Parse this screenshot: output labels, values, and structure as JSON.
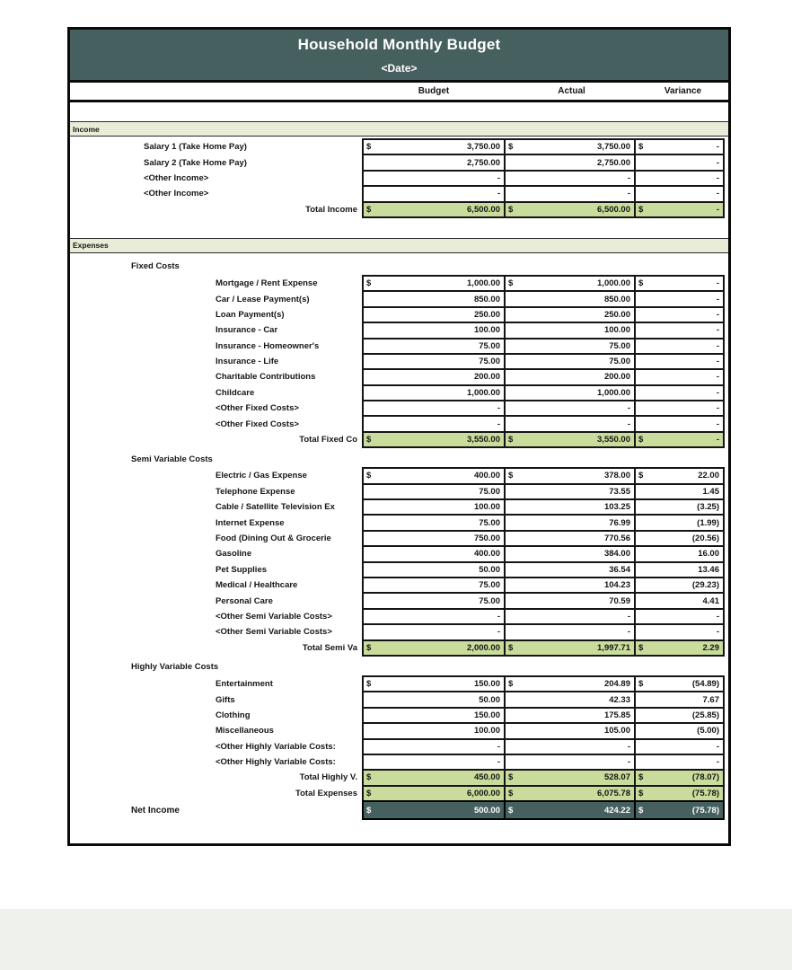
{
  "page": {
    "title": "Household Monthly Budget",
    "date_placeholder": "<Date>",
    "columns": [
      "Budget",
      "Actual",
      "Variance"
    ],
    "colors": {
      "header_teal": "#45605e",
      "section_band": "#e9edd8",
      "total_green": "#c9dc9b",
      "net_row": "#45605e"
    }
  },
  "rows": [
    {
      "t": "band",
      "label": "Income"
    },
    {
      "t": "gap",
      "h": 2
    },
    {
      "t": "item",
      "ind": "income",
      "label": "Salary 1 (Take Home Pay)",
      "d": true,
      "b": "3,750.00",
      "a": "3,750.00",
      "v": "-"
    },
    {
      "t": "item",
      "ind": "income",
      "label": "Salary 2 (Take Home Pay)",
      "b": "2,750.00",
      "a": "2,750.00",
      "v": "-"
    },
    {
      "t": "item",
      "ind": "income",
      "label": "<Other Income>",
      "b": "-",
      "a": "-",
      "v": "-"
    },
    {
      "t": "item",
      "ind": "income",
      "label": "<Other Income>",
      "b": "-",
      "a": "-",
      "v": "-"
    },
    {
      "t": "total",
      "label": "Total Income",
      "d": true,
      "b": "6,500.00",
      "a": "6,500.00",
      "v": "-"
    },
    {
      "t": "gap",
      "h": 22
    },
    {
      "t": "band",
      "label": "Expenses"
    },
    {
      "t": "gap",
      "h": 3
    },
    {
      "t": "group",
      "label": "Fixed Costs"
    },
    {
      "t": "item",
      "ind": "exp",
      "label": "Mortgage / Rent Expense",
      "d": true,
      "b": "1,000.00",
      "a": "1,000.00",
      "v": "-"
    },
    {
      "t": "item",
      "ind": "exp",
      "label": "Car / Lease Payment(s)",
      "b": "850.00",
      "a": "850.00",
      "v": "-"
    },
    {
      "t": "item",
      "ind": "exp",
      "label": "Loan Payment(s)",
      "b": "250.00",
      "a": "250.00",
      "v": "-"
    },
    {
      "t": "item",
      "ind": "exp",
      "label": "Insurance - Car",
      "b": "100.00",
      "a": "100.00",
      "v": "-"
    },
    {
      "t": "item",
      "ind": "exp",
      "label": "Insurance - Homeowner's",
      "b": "75.00",
      "a": "75.00",
      "v": "-"
    },
    {
      "t": "item",
      "ind": "exp",
      "label": "Insurance - Life",
      "b": "75.00",
      "a": "75.00",
      "v": "-"
    },
    {
      "t": "item",
      "ind": "exp",
      "label": "Charitable Contributions",
      "b": "200.00",
      "a": "200.00",
      "v": "-"
    },
    {
      "t": "item",
      "ind": "exp",
      "label": "Childcare",
      "b": "1,000.00",
      "a": "1,000.00",
      "v": "-"
    },
    {
      "t": "item",
      "ind": "exp",
      "label": "<Other Fixed Costs>",
      "b": "-",
      "a": "-",
      "v": "-"
    },
    {
      "t": "item",
      "ind": "exp",
      "label": "<Other Fixed Costs>",
      "b": "-",
      "a": "-",
      "v": "-"
    },
    {
      "t": "total",
      "label": "Total Fixed Co",
      "d": true,
      "b": "3,550.00",
      "a": "3,550.00",
      "v": "-"
    },
    {
      "t": "group",
      "label": "Semi Variable Costs"
    },
    {
      "t": "item",
      "ind": "exp",
      "label": "Electric / Gas Expense",
      "d": true,
      "b": "400.00",
      "a": "378.00",
      "v": "22.00"
    },
    {
      "t": "item",
      "ind": "exp",
      "label": "Telephone Expense",
      "b": "75.00",
      "a": "73.55",
      "v": "1.45"
    },
    {
      "t": "item",
      "ind": "exp",
      "label": "Cable / Satellite Television Ex",
      "b": "100.00",
      "a": "103.25",
      "v": "(3.25)"
    },
    {
      "t": "item",
      "ind": "exp",
      "label": "Internet Expense",
      "b": "75.00",
      "a": "76.99",
      "v": "(1.99)"
    },
    {
      "t": "item",
      "ind": "exp",
      "label": "Food (Dining Out & Grocerie",
      "b": "750.00",
      "a": "770.56",
      "v": "(20.56)"
    },
    {
      "t": "item",
      "ind": "exp",
      "label": "Gasoline",
      "b": "400.00",
      "a": "384.00",
      "v": "16.00"
    },
    {
      "t": "item",
      "ind": "exp",
      "label": "Pet Supplies",
      "b": "50.00",
      "a": "36.54",
      "v": "13.46"
    },
    {
      "t": "item",
      "ind": "exp",
      "label": "Medical / Healthcare",
      "b": "75.00",
      "a": "104.23",
      "v": "(29.23)"
    },
    {
      "t": "item",
      "ind": "exp",
      "label": "Personal Care",
      "b": "75.00",
      "a": "70.59",
      "v": "4.41"
    },
    {
      "t": "item",
      "ind": "exp",
      "label": "<Other Semi Variable Costs>",
      "b": "-",
      "a": "-",
      "v": "-"
    },
    {
      "t": "item",
      "ind": "exp",
      "label": "<Other Semi Variable Costs>",
      "b": "-",
      "a": "-",
      "v": "-"
    },
    {
      "t": "total",
      "label": "Total Semi Va",
      "d": true,
      "b": "2,000.00",
      "a": "1,997.71",
      "v": "2.29"
    },
    {
      "t": "group",
      "label": "Highly Variable Costs"
    },
    {
      "t": "item",
      "ind": "exp",
      "label": "Entertainment",
      "d": true,
      "b": "150.00",
      "a": "204.89",
      "v": "(54.89)"
    },
    {
      "t": "item",
      "ind": "exp",
      "label": "Gifts",
      "b": "50.00",
      "a": "42.33",
      "v": "7.67"
    },
    {
      "t": "item",
      "ind": "exp",
      "label": "Clothing",
      "b": "150.00",
      "a": "175.85",
      "v": "(25.85)"
    },
    {
      "t": "item",
      "ind": "exp",
      "label": "Miscellaneous",
      "b": "100.00",
      "a": "105.00",
      "v": "(5.00)"
    },
    {
      "t": "item",
      "ind": "exp",
      "label": "<Other Highly Variable Costs:",
      "b": "-",
      "a": "-",
      "v": "-"
    },
    {
      "t": "item",
      "ind": "exp",
      "label": "<Other Highly Variable Costs:",
      "b": "-",
      "a": "-",
      "v": "-"
    },
    {
      "t": "total",
      "label": "Total Highly V.",
      "d": true,
      "b": "450.00",
      "a": "528.07",
      "v": "(78.07)"
    },
    {
      "t": "total",
      "label": "Total Expenses",
      "d": true,
      "b": "6,000.00",
      "a": "6,075.78",
      "v": "(75.78)"
    },
    {
      "t": "net",
      "label": "Net Income",
      "d": true,
      "b": "500.00",
      "a": "424.22",
      "v": "(75.78)"
    }
  ]
}
